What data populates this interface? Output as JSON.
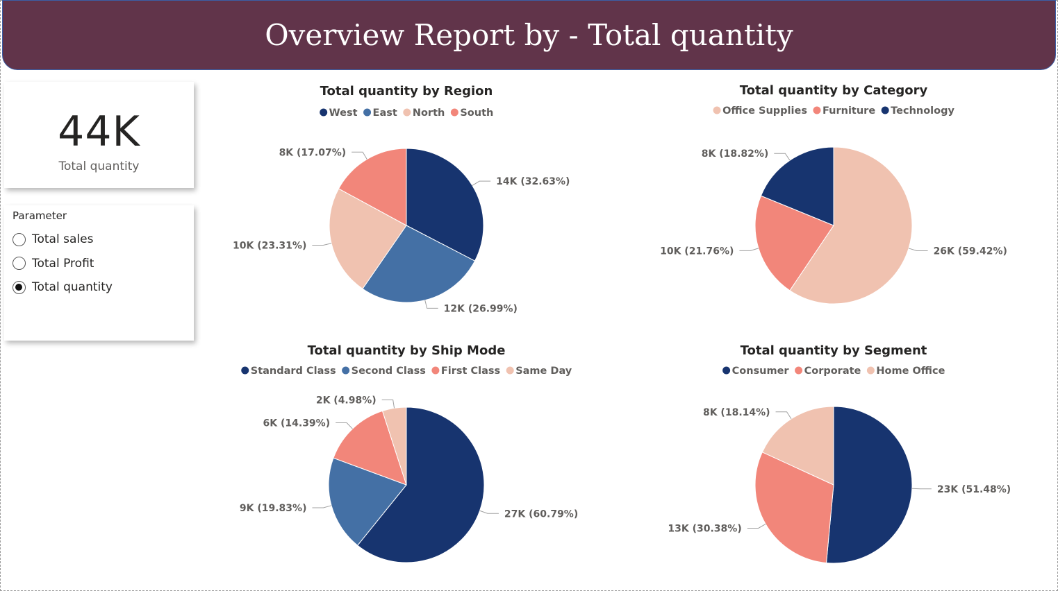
{
  "header": {
    "title": "Overview Report by - Total quantity"
  },
  "kpi": {
    "value": "44K",
    "label": "Total quantity"
  },
  "parameter": {
    "title": "Parameter",
    "options": [
      {
        "label": "Total sales",
        "selected": false
      },
      {
        "label": "Total Profit",
        "selected": false
      },
      {
        "label": "Total quantity",
        "selected": true
      }
    ]
  },
  "colors": {
    "navy": "#17346f",
    "blue": "#4470a5",
    "peach": "#f0c2b0",
    "salmon": "#f2867a",
    "banner": "#61344a"
  },
  "chart_data": [
    {
      "type": "pie",
      "title": "Total quantity by Region",
      "categories": [
        "West",
        "East",
        "North",
        "South"
      ],
      "values": [
        32.63,
        26.99,
        23.31,
        17.07
      ],
      "labels": [
        "14K (32.63%)",
        "12K (26.99%)",
        "10K (23.31%)",
        "8K (17.07%)"
      ],
      "colors": [
        "#17346f",
        "#4470a5",
        "#f0c2b0",
        "#f2867a"
      ],
      "slice_order": [
        0,
        1,
        2,
        3
      ],
      "legend": "top-center"
    },
    {
      "type": "pie",
      "title": "Total quantity by Category",
      "categories": [
        "Office Supplies",
        "Furniture",
        "Technology"
      ],
      "values": [
        59.42,
        21.76,
        18.82
      ],
      "labels": [
        "26K (59.42%)",
        "10K (21.76%)",
        "8K (18.82%)"
      ],
      "colors": [
        "#f0c2b0",
        "#f2867a",
        "#17346f"
      ],
      "slice_order": [
        0,
        1,
        2
      ],
      "legend": "top-center"
    },
    {
      "type": "pie",
      "title": "Total quantity by Ship Mode",
      "categories": [
        "Standard Class",
        "Second Class",
        "First Class",
        "Same Day"
      ],
      "values": [
        60.79,
        19.83,
        14.39,
        4.98
      ],
      "labels": [
        "27K (60.79%)",
        "9K (19.83%)",
        "6K (14.39%)",
        "2K (4.98%)"
      ],
      "colors": [
        "#17346f",
        "#4470a5",
        "#f2867a",
        "#f0c2b0"
      ],
      "slice_order": [
        0,
        1,
        2,
        3
      ],
      "legend": "top-center"
    },
    {
      "type": "pie",
      "title": "Total quantity by Segment",
      "categories": [
        "Consumer",
        "Corporate",
        "Home Office"
      ],
      "values": [
        51.48,
        30.38,
        18.14
      ],
      "labels": [
        "23K (51.48%)",
        "13K (30.38%)",
        "8K (18.14%)"
      ],
      "colors": [
        "#17346f",
        "#f2867a",
        "#f0c2b0"
      ],
      "slice_order": [
        0,
        1,
        2
      ],
      "legend": "top-center"
    }
  ]
}
